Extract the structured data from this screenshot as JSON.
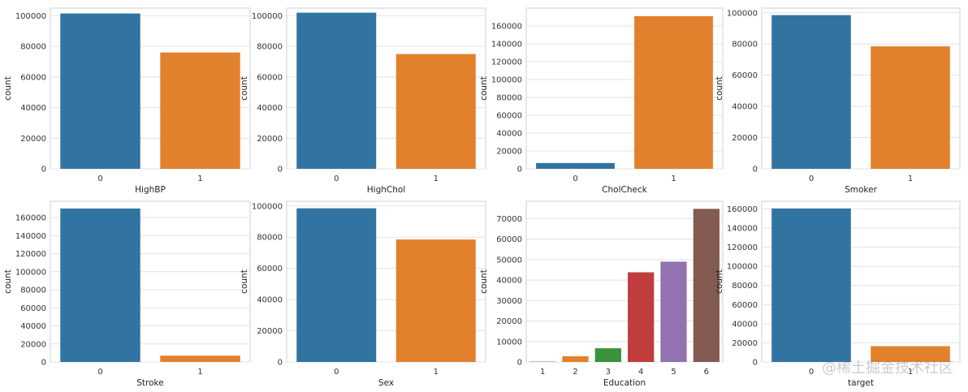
{
  "palette": [
    "#3274a1",
    "#e1812c",
    "#3a923a",
    "#c03d3e",
    "#9372b2",
    "#845b53"
  ],
  "watermark": "@稀土掘金技术社区",
  "chart_data": [
    {
      "type": "bar",
      "categories": [
        "0",
        "1"
      ],
      "values": [
        101500,
        76000
      ],
      "ylim": [
        0,
        105000
      ],
      "yticks": [
        0,
        20000,
        40000,
        60000,
        80000,
        100000
      ],
      "xlabel": "HighBP",
      "ylabel": "count",
      "grid": true
    },
    {
      "type": "bar",
      "categories": [
        "0",
        "1"
      ],
      "values": [
        102000,
        75000
      ],
      "ylim": [
        0,
        105000
      ],
      "yticks": [
        0,
        20000,
        40000,
        60000,
        80000,
        100000
      ],
      "xlabel": "HighChol",
      "ylabel": "count",
      "grid": true
    },
    {
      "type": "bar",
      "categories": [
        "0",
        "1"
      ],
      "values": [
        6500,
        171000
      ],
      "ylim": [
        0,
        180000
      ],
      "yticks": [
        0,
        20000,
        40000,
        60000,
        80000,
        100000,
        120000,
        140000,
        160000
      ],
      "xlabel": "CholCheck",
      "ylabel": "count",
      "grid": true
    },
    {
      "type": "bar",
      "categories": [
        "0",
        "1"
      ],
      "values": [
        98500,
        78500
      ],
      "ylim": [
        0,
        103000
      ],
      "yticks": [
        0,
        20000,
        40000,
        60000,
        80000,
        100000
      ],
      "xlabel": "Smoker",
      "ylabel": "count",
      "grid": true
    },
    {
      "type": "bar",
      "categories": [
        "0",
        "1"
      ],
      "values": [
        170000,
        7000
      ],
      "ylim": [
        0,
        178000
      ],
      "yticks": [
        0,
        20000,
        40000,
        60000,
        80000,
        100000,
        120000,
        140000,
        160000
      ],
      "xlabel": "Stroke",
      "ylabel": "count",
      "grid": true
    },
    {
      "type": "bar",
      "categories": [
        "0",
        "1"
      ],
      "values": [
        98500,
        78500
      ],
      "ylim": [
        0,
        103000
      ],
      "yticks": [
        0,
        20000,
        40000,
        60000,
        80000,
        100000
      ],
      "xlabel": "Sex",
      "ylabel": "count",
      "grid": true
    },
    {
      "type": "bar",
      "categories": [
        "1",
        "2",
        "3",
        "4",
        "5",
        "6"
      ],
      "values": [
        150,
        2800,
        6700,
        43800,
        49000,
        74800
      ],
      "ylim": [
        0,
        78500
      ],
      "yticks": [
        0,
        10000,
        20000,
        30000,
        40000,
        50000,
        60000,
        70000
      ],
      "xlabel": "Education",
      "ylabel": "count",
      "grid": true
    },
    {
      "type": "bar",
      "categories": [
        "0",
        "1"
      ],
      "values": [
        160500,
        16500
      ],
      "ylim": [
        0,
        168000
      ],
      "yticks": [
        0,
        20000,
        40000,
        60000,
        80000,
        100000,
        120000,
        140000,
        160000
      ],
      "xlabel": "target",
      "ylabel": "count",
      "grid": true
    }
  ]
}
